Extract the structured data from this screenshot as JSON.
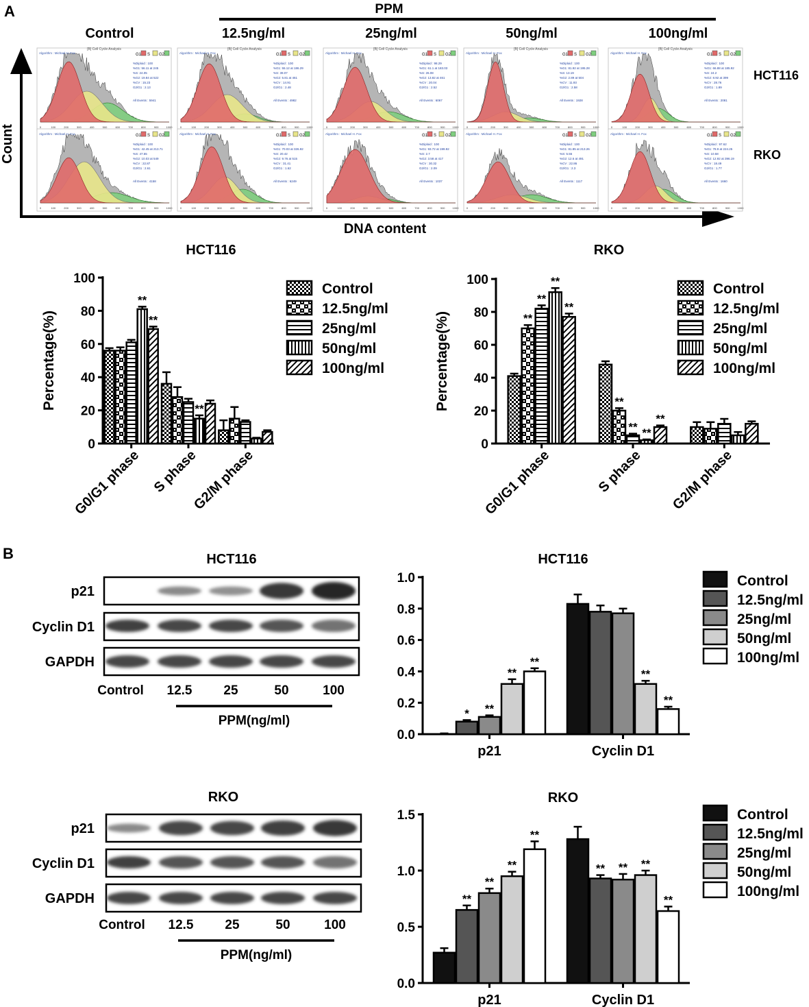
{
  "panel_a": {
    "label": "A",
    "ppm_label": "PPM",
    "columns": [
      "Control",
      "12.5ng/ml",
      "25ng/ml",
      "50ng/ml",
      "100ng/ml"
    ],
    "rows": [
      "HCT116",
      "RKO"
    ],
    "y_axis_label": "Count",
    "x_axis_label": "DNA content",
    "histogram_legend": [
      "G1",
      "S",
      "G2"
    ],
    "histogram_header": "[B] Cell Cycle Analysis",
    "histogram_algorithm": "Algorithm : Michael H. Fox",
    "histogram_stats": [
      [
        [
          "%Diploid : 100",
          "%G1: 56.11 at 245",
          "%S: 24.05",
          "%G2: 19.84 at 522",
          "%CV : 15.23",
          "G2/G1 : 2.13",
          "All Events : 5941"
        ],
        [
          "%Diploid : 100",
          "%G1: 55.12 at 186.29",
          "%S: 39.07",
          "%G2: 5.81 at 461",
          "%CV : 14.91",
          "G2/G1 : 2.48",
          "All Events : 4982"
        ],
        [
          "%Diploid : 98.29",
          "%G1: 61.1 at 183.03",
          "%S: 26.08",
          "%G2: 13.82 at 461",
          "%CV : 20.04",
          "G2/G1 : 2.52",
          "All Events : 6067"
        ],
        [
          "%Diploid : 100",
          "%G1: 81.92 at 195.28",
          "%S: 13.19",
          "%G2: 2.89 at 504",
          "%CV : 11.93",
          "G2/G1 : 2.58",
          "All Events : 1928"
        ],
        [
          "%Diploid : 100",
          "%G1: 66.88 at 185.92",
          "%S: 24.2",
          "%G2: 8.92 at 399",
          "%CV : 28.76",
          "G2/G1 : 1.89",
          "All Events : 2081"
        ]
      ],
      [
        [
          "%Diploid : 100",
          "%G1: 42.45 at 213.71",
          "%S: 47.55",
          "%G2: 10.03 at 549",
          "%CV : 22.87",
          "G2/G1 : 2.61",
          "All Events : 4158"
        ],
        [
          "%Diploid : 100",
          "%G1: 70.03 at 326.92",
          "%S: 20.42",
          "%G2: 9.76 at 515",
          "%CV : 31.41",
          "G2/G1 : 1.62",
          "All Events : 6249"
        ],
        [
          "%Diploid : 100",
          "%G1: 93.72 at 199.92",
          "%S: 2.7",
          "%G2: 3.58 at 417",
          "%CV : 30.32",
          "G2/G1 : 2.09",
          "All Events : 1037"
        ],
        [
          "%Diploid : 100",
          "%G1: 81.85 at 213.26",
          "%S: 5.55",
          "%G2: 12.6 at 491",
          "%CV : 22.86",
          "G2/G1 : 2.3",
          "All Events : 1117"
        ],
        [
          "%Diploid : 97.62",
          "%G1: 78.9 at 224.25",
          "%S: 10.58",
          "%G2: 12.92 at 396.19",
          "%CV : 18.49",
          "G2/G1 : 1.77",
          "All Events : 1660"
        ]
      ]
    ],
    "histogram_x_ticks": [
      "0",
      "100",
      "200",
      "300",
      "400",
      "500",
      "600",
      "700",
      "800",
      "900",
      "1000"
    ]
  },
  "panel_b": {
    "label": "B",
    "blots": [
      {
        "title": "HCT116",
        "rows": [
          "p21",
          "Cyclin D1",
          "GAPDH"
        ],
        "lanes": [
          "Control",
          "12.5",
          "25",
          "50",
          "100"
        ],
        "xlabel": "PPM(ng/ml)"
      },
      {
        "title": "RKO",
        "rows": [
          "p21",
          "Cyclin D1",
          "GAPDH"
        ],
        "lanes": [
          "Control",
          "12.5",
          "25",
          "50",
          "100"
        ],
        "xlabel": "PPM(ng/ml)"
      }
    ]
  },
  "colors": {
    "g1_fill": "#e06a6a",
    "s_fill": "#e8e58a",
    "g2_fill": "#7fce7f",
    "histogram_gray": "#b5b5b5",
    "bar_control": "#111111",
    "bar_12_5": "#555555",
    "bar_25": "#8a8a8a",
    "bar_50": "#cfcfcf",
    "bar_100": "#ffffff"
  },
  "chart_data": [
    {
      "type": "bar",
      "title": "HCT116",
      "ylabel": "Percentage(%)",
      "xlabel": "",
      "categories": [
        "G0/G1 phase",
        "S phase",
        "G2/M phase"
      ],
      "ylim": [
        0,
        100
      ],
      "yticks": [
        "0",
        "20",
        "40",
        "60",
        "80",
        "100"
      ],
      "series": [
        {
          "name": "Control",
          "values": [
            56,
            36,
            8
          ],
          "errors": [
            1.5,
            7,
            6
          ]
        },
        {
          "name": "12.5ng/ml",
          "values": [
            56,
            28,
            15
          ],
          "errors": [
            2,
            6,
            7
          ]
        },
        {
          "name": "25ng/ml",
          "values": [
            61,
            25,
            13
          ],
          "errors": [
            1.5,
            2,
            1
          ]
        },
        {
          "name": "50ng/ml",
          "values": [
            81,
            15,
            3
          ],
          "errors": [
            1.5,
            2,
            0.5
          ]
        },
        {
          "name": "100ng/ml",
          "values": [
            69,
            24,
            7
          ],
          "errors": [
            1.5,
            2,
            1
          ]
        }
      ],
      "significance": [
        [
          "",
          "",
          ""
        ],
        [
          "",
          "",
          ""
        ],
        [
          "",
          "",
          ""
        ],
        [
          "**",
          "**",
          ""
        ],
        [
          "**",
          "",
          ""
        ]
      ]
    },
    {
      "type": "bar",
      "title": "RKO",
      "ylabel": "Percentage(%)",
      "xlabel": "",
      "categories": [
        "G0/G1 phase",
        "S phase",
        "G2/M phase"
      ],
      "ylim": [
        0,
        100
      ],
      "yticks": [
        "0",
        "20",
        "40",
        "60",
        "80",
        "100"
      ],
      "series": [
        {
          "name": "Control",
          "values": [
            41,
            48,
            10
          ],
          "errors": [
            1.5,
            2,
            3
          ]
        },
        {
          "name": "12.5ng/ml",
          "values": [
            70,
            20,
            9
          ],
          "errors": [
            2,
            1.5,
            4
          ]
        },
        {
          "name": "25ng/ml",
          "values": [
            82,
            5,
            12
          ],
          "errors": [
            2,
            1,
            3
          ]
        },
        {
          "name": "50ng/ml",
          "values": [
            92,
            2,
            5
          ],
          "errors": [
            2.5,
            0.5,
            2
          ]
        },
        {
          "name": "100ng/ml",
          "values": [
            77,
            10,
            12
          ],
          "errors": [
            2,
            1,
            1.5
          ]
        }
      ],
      "significance": [
        [
          "",
          "",
          ""
        ],
        [
          "**",
          "**",
          ""
        ],
        [
          "**",
          "**",
          ""
        ],
        [
          "**",
          "**",
          ""
        ],
        [
          "**",
          "**",
          ""
        ]
      ]
    },
    {
      "type": "bar",
      "title": "HCT116",
      "ylabel": "",
      "xlabel": "",
      "categories": [
        "p21",
        "Cyclin D1"
      ],
      "ylim": [
        0,
        1.0
      ],
      "yticks": [
        "0.0",
        "0.2",
        "0.4",
        "0.6",
        "0.8",
        "1.0"
      ],
      "series": [
        {
          "name": "Control",
          "values": [
            0.0,
            0.83
          ],
          "errors": [
            0.005,
            0.06
          ]
        },
        {
          "name": "12.5ng/ml",
          "values": [
            0.08,
            0.78
          ],
          "errors": [
            0.01,
            0.04
          ]
        },
        {
          "name": "25ng/ml",
          "values": [
            0.11,
            0.77
          ],
          "errors": [
            0.01,
            0.03
          ]
        },
        {
          "name": "50ng/ml",
          "values": [
            0.32,
            0.32
          ],
          "errors": [
            0.03,
            0.02
          ]
        },
        {
          "name": "100ng/ml",
          "values": [
            0.4,
            0.16
          ],
          "errors": [
            0.02,
            0.015
          ]
        }
      ],
      "significance": [
        [
          "",
          ""
        ],
        [
          "*",
          ""
        ],
        [
          "**",
          ""
        ],
        [
          "**",
          "**"
        ],
        [
          "**",
          "**"
        ]
      ]
    },
    {
      "type": "bar",
      "title": "RKO",
      "ylabel": "",
      "xlabel": "",
      "categories": [
        "p21",
        "Cyclin D1"
      ],
      "ylim": [
        0,
        1.5
      ],
      "yticks": [
        "0.0",
        "0.5",
        "1.0",
        "1.5"
      ],
      "series": [
        {
          "name": "Control",
          "values": [
            0.27,
            1.28
          ],
          "errors": [
            0.04,
            0.11
          ]
        },
        {
          "name": "12.5ng/ml",
          "values": [
            0.65,
            0.93
          ],
          "errors": [
            0.04,
            0.03
          ]
        },
        {
          "name": "25ng/ml",
          "values": [
            0.8,
            0.92
          ],
          "errors": [
            0.04,
            0.05
          ]
        },
        {
          "name": "50ng/ml",
          "values": [
            0.95,
            0.96
          ],
          "errors": [
            0.04,
            0.04
          ]
        },
        {
          "name": "100ng/ml",
          "values": [
            1.19,
            0.64
          ],
          "errors": [
            0.07,
            0.04
          ]
        }
      ],
      "significance": [
        [
          "",
          ""
        ],
        [
          "**",
          "**"
        ],
        [
          "**",
          "**"
        ],
        [
          "**",
          "**"
        ],
        [
          "**",
          "**"
        ]
      ]
    }
  ]
}
